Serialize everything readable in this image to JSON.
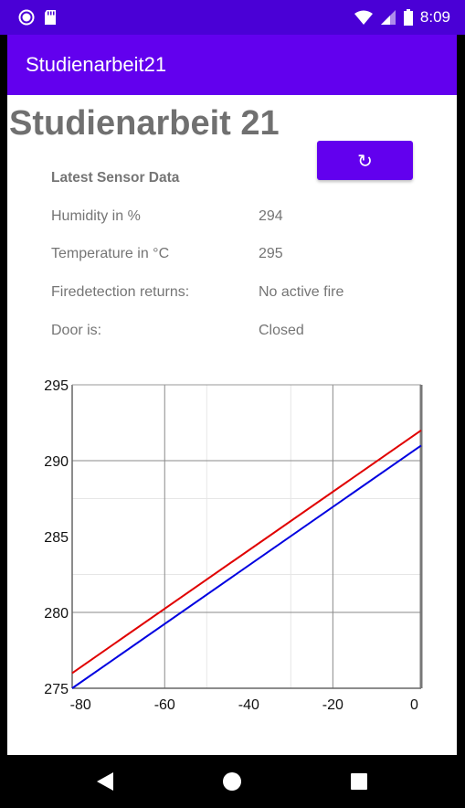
{
  "status_bar": {
    "time": "8:09",
    "colors": {
      "bar": "#4a00d6"
    }
  },
  "app_bar": {
    "title": "Studienarbeit21",
    "color": "#6200ee"
  },
  "main": {
    "heading": "Studienarbeit 21",
    "refresh_icon": "↻",
    "section_title": "Latest Sensor Data",
    "rows": [
      {
        "label": "Humidity in %",
        "value": "294"
      },
      {
        "label": "Temperature in °C",
        "value": "295"
      },
      {
        "label": "Firedetection returns:",
        "value": "No active fire"
      },
      {
        "label": "Door is:",
        "value": "Closed"
      }
    ]
  },
  "chart_data": {
    "type": "line",
    "title": "",
    "xlabel": "",
    "ylabel": "",
    "xlim": [
      -82,
      1
    ],
    "ylim": [
      275,
      295
    ],
    "x_ticks": [
      "-80",
      "-60",
      "-40",
      "-20",
      "0"
    ],
    "y_ticks": [
      "295",
      "290",
      "285",
      "280",
      "275"
    ],
    "grid": true,
    "series": [
      {
        "color": "#e00000",
        "x": [
          -82,
          1
        ],
        "y": [
          276,
          292
        ]
      },
      {
        "color": "#0000e0",
        "x": [
          -82,
          1
        ],
        "y": [
          275,
          291
        ]
      }
    ]
  }
}
